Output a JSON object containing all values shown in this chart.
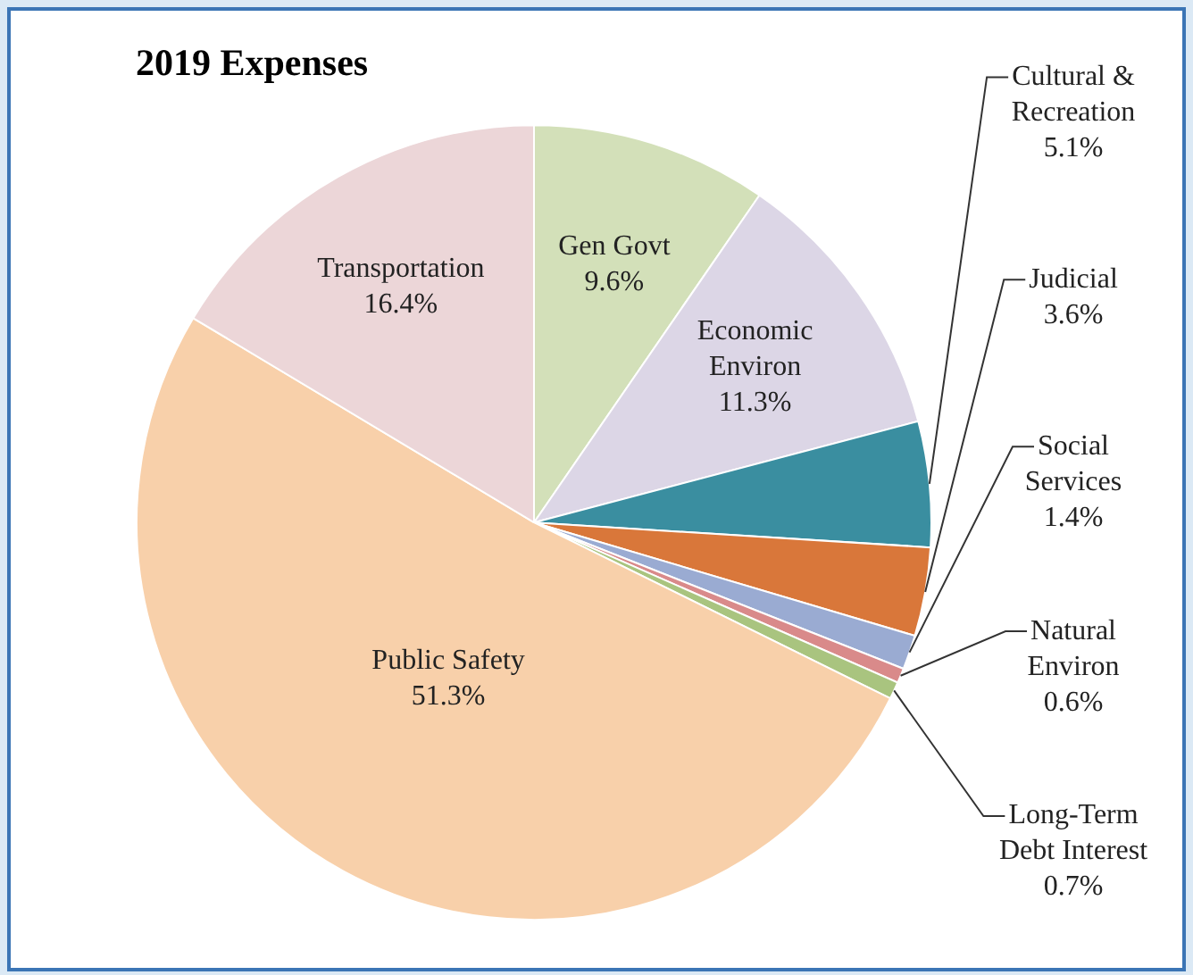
{
  "chart_data": {
    "type": "pie",
    "title": "2019 Expenses",
    "categories": [
      "Gen Govt",
      "Economic Environ",
      "Cultural & Recreation",
      "Judicial",
      "Social Services",
      "Natural Environ",
      "Long-Term Debt Interest",
      "Public Safety",
      "Transportation"
    ],
    "values": [
      9.6,
      11.3,
      5.1,
      3.6,
      1.4,
      0.6,
      0.7,
      51.3,
      16.4
    ],
    "value_labels": [
      "9.6%",
      "11.3%",
      "5.1%",
      "3.6%",
      "1.4%",
      "0.6%",
      "0.7%",
      "51.3%",
      "16.4%"
    ],
    "colors": [
      "#d3e0b9",
      "#dcd6e6",
      "#3a8ea0",
      "#d9773a",
      "#9aabd2",
      "#d98a8a",
      "#a9c47f",
      "#f8d0aa",
      "#ecd6d8"
    ],
    "legend": false
  }
}
